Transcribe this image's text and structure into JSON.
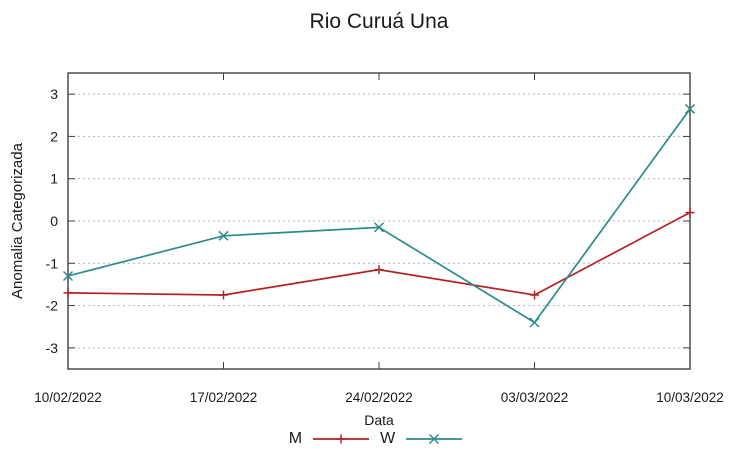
{
  "title": "Rio Curuá Una",
  "colors": {
    "series_m": "#b22222",
    "series_w": "#2e8b8b",
    "grid": "#b3b3b3",
    "border": "#404040",
    "text": "#1a1a1a",
    "background": "#ffffff"
  },
  "chart_data": {
    "type": "line",
    "title": "Rio Curuá Una",
    "xlabel": "Data",
    "ylabel": "Anomalia Categorizada",
    "categories": [
      "10/02/2022",
      "17/02/2022",
      "24/02/2022",
      "03/03/2022",
      "10/03/2022"
    ],
    "series": [
      {
        "name": "M",
        "color": "#b22222",
        "marker": "plus",
        "values": [
          -1.7,
          -1.75,
          -1.15,
          -1.75,
          0.2
        ]
      },
      {
        "name": "W",
        "color": "#2e8b8b",
        "marker": "cross",
        "values": [
          -1.3,
          -0.35,
          -0.15,
          -2.4,
          2.65
        ]
      }
    ],
    "yticks": [
      -3,
      -2,
      -1,
      0,
      1,
      2,
      3
    ],
    "ylim": [
      -3.5,
      3.5
    ],
    "grid": true,
    "grid_style": "dotted",
    "legend_position": "bottom-center",
    "tick_mirror": true
  }
}
